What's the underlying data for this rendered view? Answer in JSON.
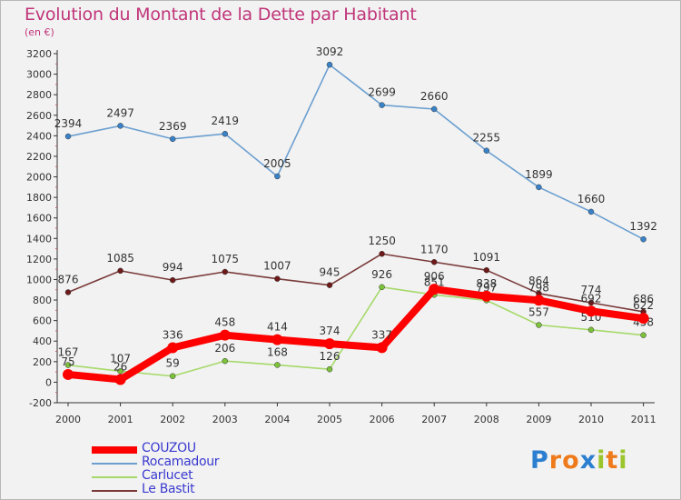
{
  "title": "Evolution du Montant de la Dette par Habitant",
  "unit_label": "(en €)",
  "logo": {
    "letters": [
      "P",
      "r",
      "o",
      "x",
      "i",
      "t",
      "i"
    ],
    "colors": [
      "#2c7fd0",
      "#ee7a1b",
      "#ee7a1b",
      "#2c7fd0",
      "#9ac52c",
      "#ee7a1b",
      "#9ac52c"
    ]
  },
  "chart_data": {
    "type": "line",
    "title": "Evolution du Montant de la Dette par Habitant",
    "ylabel": "(en €)",
    "xlabel": "",
    "x": [
      "2000",
      "2001",
      "2002",
      "2003",
      "2004",
      "2005",
      "2006",
      "2007",
      "2008",
      "2009",
      "2010",
      "2011"
    ],
    "ylim": [
      -200,
      3200
    ],
    "ytick_step": 200,
    "grid": false,
    "legend_position": "bottom-left",
    "series": [
      {
        "name": "Rocamadour",
        "color": "#6b9fd0",
        "marker_color": "#3a82c8",
        "values": [
          2394,
          2497,
          2369,
          2419,
          2005,
          3092,
          2699,
          2660,
          2255,
          1899,
          1660,
          1392
        ],
        "labels": [
          "2394",
          "2497",
          "2369",
          "2419",
          "2005",
          "3092",
          "2699",
          "2660",
          "2255",
          "1899",
          "1660",
          "1392"
        ]
      },
      {
        "name": "Le Bastit",
        "color": "#7a3a3a",
        "marker_color": "#6e1a1a",
        "values": [
          876,
          1085,
          994,
          1075,
          1007,
          945,
          1250,
          1170,
          1091,
          864,
          774,
          686
        ],
        "labels": [
          "876",
          "1085",
          "994",
          "1075",
          "1007",
          "945",
          "1250",
          "1170",
          "1091",
          "864",
          "774",
          "686"
        ]
      },
      {
        "name": "Carlucet",
        "color": "#a6d96a",
        "marker_color": "#7cc13a",
        "values": [
          167,
          107,
          59,
          206,
          168,
          126,
          926,
          851,
          797,
          557,
          510,
          458
        ],
        "labels": [
          "167",
          "107",
          "59",
          "206",
          "168",
          "126",
          "926",
          "851",
          "797",
          "557",
          "510",
          "458"
        ]
      },
      {
        "name": "COUZOU",
        "color": "#ff0000",
        "marker_color": "#ff0000",
        "values": [
          75,
          26,
          336,
          458,
          414,
          374,
          337,
          906,
          838,
          798,
          692,
          622
        ],
        "labels": [
          "75",
          "26",
          "336",
          "458",
          "414",
          "374",
          "337",
          "906",
          "838",
          "798",
          "692",
          "622"
        ]
      }
    ]
  },
  "legend": [
    {
      "name": "COUZOU",
      "color": "#ff0000",
      "width": 8
    },
    {
      "name": "Rocamadour",
      "color": "#6b9fd0",
      "width": 2
    },
    {
      "name": "Carlucet",
      "color": "#a6d96a",
      "width": 2
    },
    {
      "name": "Le Bastit",
      "color": "#7a3a3a",
      "width": 2
    }
  ]
}
